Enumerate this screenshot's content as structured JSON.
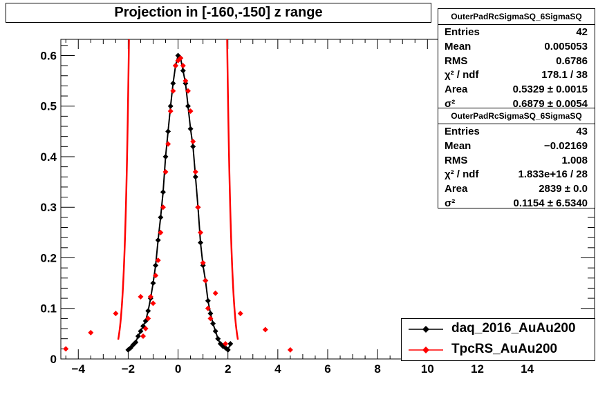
{
  "chart_data": {
    "type": "scatter",
    "title": "Projection in [-160,-150] z range",
    "xlim": [
      -4.7,
      16.7
    ],
    "ylim": [
      0,
      0.632
    ],
    "x_ticks": [
      -4,
      -2,
      0,
      2,
      4,
      6,
      8,
      10,
      12,
      14
    ],
    "x_tick_labels": [
      "−4",
      "−2",
      "0",
      "2",
      "4",
      "6",
      "8",
      "10",
      "12",
      "14"
    ],
    "y_ticks": [
      0,
      0.1,
      0.2,
      0.3,
      0.4,
      0.5,
      0.6
    ],
    "y_tick_labels": [
      "0",
      "0.1",
      "0.2",
      "0.3",
      "0.4",
      "0.5",
      "0.6"
    ],
    "grid": false,
    "legend_position": "bottom-right",
    "series": [
      {
        "name": "daq_2016_AuAu200",
        "color": "#000000",
        "points": [
          [
            -2.0,
            0.018
          ],
          [
            -1.9,
            0.022
          ],
          [
            -1.8,
            0.028
          ],
          [
            -1.7,
            0.033
          ],
          [
            -1.6,
            0.045
          ],
          [
            -1.5,
            0.055
          ],
          [
            -1.4,
            0.065
          ],
          [
            -1.3,
            0.075
          ],
          [
            -1.2,
            0.095
          ],
          [
            -1.1,
            0.12
          ],
          [
            -1.0,
            0.15
          ],
          [
            -0.9,
            0.185
          ],
          [
            -0.8,
            0.235
          ],
          [
            -0.7,
            0.28
          ],
          [
            -0.6,
            0.33
          ],
          [
            -0.5,
            0.4
          ],
          [
            -0.4,
            0.45
          ],
          [
            -0.3,
            0.5
          ],
          [
            -0.2,
            0.545
          ],
          [
            -0.1,
            0.58
          ],
          [
            0.0,
            0.6
          ],
          [
            0.1,
            0.595
          ],
          [
            0.2,
            0.57
          ],
          [
            0.3,
            0.545
          ],
          [
            0.4,
            0.5
          ],
          [
            0.5,
            0.455
          ],
          [
            0.6,
            0.42
          ],
          [
            0.7,
            0.36
          ],
          [
            0.8,
            0.3
          ],
          [
            0.9,
            0.23
          ],
          [
            1.0,
            0.185
          ],
          [
            1.1,
            0.155
          ],
          [
            1.2,
            0.115
          ],
          [
            1.3,
            0.09
          ],
          [
            1.4,
            0.07
          ],
          [
            1.5,
            0.055
          ],
          [
            1.6,
            0.04
          ],
          [
            1.7,
            0.03
          ],
          [
            1.8,
            0.025
          ],
          [
            1.9,
            0.022
          ],
          [
            2.0,
            0.018
          ],
          [
            2.1,
            0.03
          ]
        ]
      },
      {
        "name": "TpcRS_AuAu200",
        "color": "#ff0000",
        "points": [
          [
            -4.5,
            0.02
          ],
          [
            -3.5,
            0.052
          ],
          [
            -2.5,
            0.09
          ],
          [
            -1.5,
            0.123
          ],
          [
            -1.1,
            0.123
          ],
          [
            -1.3,
            0.06
          ],
          [
            -1.4,
            0.045
          ],
          [
            -1.2,
            0.08
          ],
          [
            -1.0,
            0.11
          ],
          [
            -0.9,
            0.165
          ],
          [
            -0.8,
            0.195
          ],
          [
            -0.7,
            0.25
          ],
          [
            -0.6,
            0.3
          ],
          [
            -0.5,
            0.37
          ],
          [
            -0.4,
            0.425
          ],
          [
            -0.3,
            0.49
          ],
          [
            -0.2,
            0.53
          ],
          [
            -0.1,
            0.58
          ],
          [
            0.0,
            0.59
          ],
          [
            0.1,
            0.595
          ],
          [
            0.2,
            0.58
          ],
          [
            0.3,
            0.55
          ],
          [
            0.4,
            0.53
          ],
          [
            0.5,
            0.49
          ],
          [
            0.6,
            0.43
          ],
          [
            0.7,
            0.37
          ],
          [
            0.8,
            0.3
          ],
          [
            0.9,
            0.25
          ],
          [
            1.0,
            0.19
          ],
          [
            1.1,
            0.155
          ],
          [
            1.2,
            0.1
          ],
          [
            1.3,
            0.08
          ],
          [
            1.5,
            0.13
          ],
          [
            1.9,
            0.03
          ],
          [
            2.5,
            0.09
          ],
          [
            3.5,
            0.058
          ],
          [
            4.5,
            0.018
          ]
        ],
        "fit_curve": "narrow_gaussian_sigma_0.1154_area_2839"
      }
    ]
  },
  "stats": [
    {
      "name": "OuterPadRcSigmaSQ_6SigmaSQ",
      "rows": [
        {
          "label": "Entries",
          "value": "42"
        },
        {
          "label": "Mean",
          "value": "0.005053"
        },
        {
          "label": "RMS",
          "value": "0.6786"
        },
        {
          "label": "χ² / ndf",
          "value": "178.1 / 38"
        },
        {
          "label": "Area",
          "value": "0.5329 ± 0.0015"
        },
        {
          "label": "σ²",
          "value": "0.6879 ± 0.0054"
        }
      ]
    },
    {
      "name": "OuterPadRcSigmaSQ_6SigmaSQ",
      "rows": [
        {
          "label": "Entries",
          "value": "43"
        },
        {
          "label": "Mean",
          "value": "−0.02169"
        },
        {
          "label": "RMS",
          "value": "1.008"
        },
        {
          "label": "χ² / ndf",
          "value": "1.833e+16 / 28"
        },
        {
          "label": "Area",
          "value": "2839 ± 0.0"
        },
        {
          "label": "σ²",
          "value": "0.1154 ± 6.5340"
        }
      ]
    }
  ]
}
